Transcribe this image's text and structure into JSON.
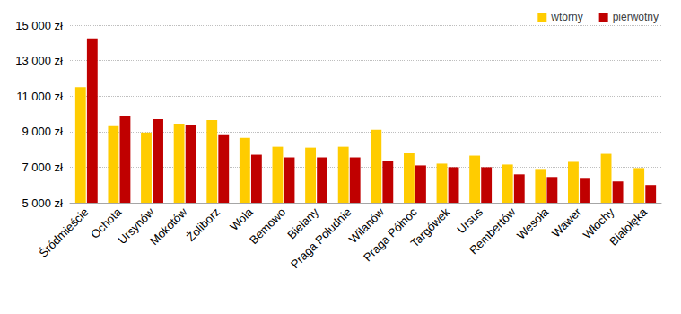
{
  "chart_data": {
    "type": "bar",
    "categories": [
      "Śródmieście",
      "Ochota",
      "Ursynów",
      "Mokotów",
      "Żoliborz",
      "Wola",
      "Bemowo",
      "Bielany",
      "Praga Południe",
      "Wilanów",
      "Praga Północ",
      "Targówek",
      "Ursus",
      "Rembertów",
      "Wesoła",
      "Wawer",
      "Włochy",
      "Białołęka"
    ],
    "series": [
      {
        "name": "wtórny",
        "color": "#FFCC00",
        "values": [
          11500,
          9350,
          8950,
          9450,
          9650,
          8650,
          8150,
          8100,
          8150,
          9100,
          7800,
          7200,
          7650,
          7150,
          6900,
          7300,
          7750,
          6950
        ]
      },
      {
        "name": "pierwotny",
        "color": "#C00000",
        "values": [
          14250,
          9900,
          9700,
          9400,
          8850,
          7700,
          7550,
          7550,
          7550,
          7350,
          7100,
          7000,
          7000,
          6600,
          6450,
          6400,
          6200,
          6000
        ]
      }
    ],
    "ylim": [
      5000,
      15000
    ],
    "yticks": [
      {
        "value": 5000,
        "label": "5 000 zł"
      },
      {
        "value": 7000,
        "label": "7 000 zł"
      },
      {
        "value": 9000,
        "label": "9 000 zł"
      },
      {
        "value": 11000,
        "label": "11 000 zł"
      },
      {
        "value": 13000,
        "label": "13 000 zł"
      },
      {
        "value": 15000,
        "label": "15 000 zł"
      }
    ],
    "grid": true,
    "legend": "upper right"
  }
}
